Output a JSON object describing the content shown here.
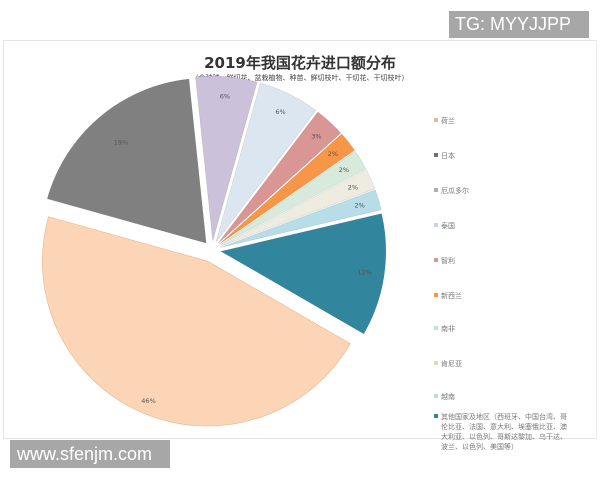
{
  "watermarks": {
    "top": "TG: MYYJJPP",
    "bottom": "www.sfenjm.com"
  },
  "chart_data": {
    "type": "pie",
    "title": "2019年我国花卉进口额分布",
    "subtitle": "（含种球、鲜切花、盆栽植物、种苗、鲜切枝叶、干切花、干切枝叶）",
    "legend_position": "right",
    "exploded": true,
    "categories": [
      "荷兰",
      "日本",
      "厄瓜多尔",
      "泰国",
      "智利",
      "新西兰",
      "南非",
      "肯尼亚",
      "越南",
      "其他国家及地区（西班牙、中国台湾、哥伦比亚、法国、意大利、埃塞俄比亚、澳大利亚、以色列、哥斯达黎加、乌干达、波兰、以色列、美国等）"
    ],
    "values": [
      46,
      19,
      6,
      6,
      3,
      2,
      2,
      2,
      2,
      12
    ],
    "value_labels": [
      "46%",
      "19%",
      "6%",
      "6%",
      "3%",
      "2%",
      "2%",
      "2%",
      "2%",
      "12%"
    ],
    "colors": [
      "#fbd5b5",
      "#808080",
      "#ccc1da",
      "#dce6f1",
      "#d99694",
      "#f79646",
      "#d7eadb",
      "#eeece1",
      "#b7dde8",
      "#31859c"
    ]
  },
  "legend": {
    "items": [
      {
        "label": "荷兰",
        "color": "#e6b890"
      },
      {
        "label": "日本",
        "color": "#707070"
      },
      {
        "label": "厄瓜多尔",
        "color": "#b3a8c4"
      },
      {
        "label": "泰国",
        "color": "#c7d3e3"
      },
      {
        "label": "智利",
        "color": "#d99694"
      },
      {
        "label": "新西兰",
        "color": "#f79646"
      },
      {
        "label": "南非",
        "color": "#c9dfcf"
      },
      {
        "label": "肯尼亚",
        "color": "#ddd9c8"
      },
      {
        "label": "越南",
        "color": "#b7dde8"
      },
      {
        "label": "其他国家及地区（西班牙、中国台湾、哥伦比亚、法国、意大利、埃塞俄比亚、澳大利亚、以色列、哥斯达黎加、乌干达、波兰、以色列、美国等）",
        "color": "#31859c"
      }
    ]
  }
}
